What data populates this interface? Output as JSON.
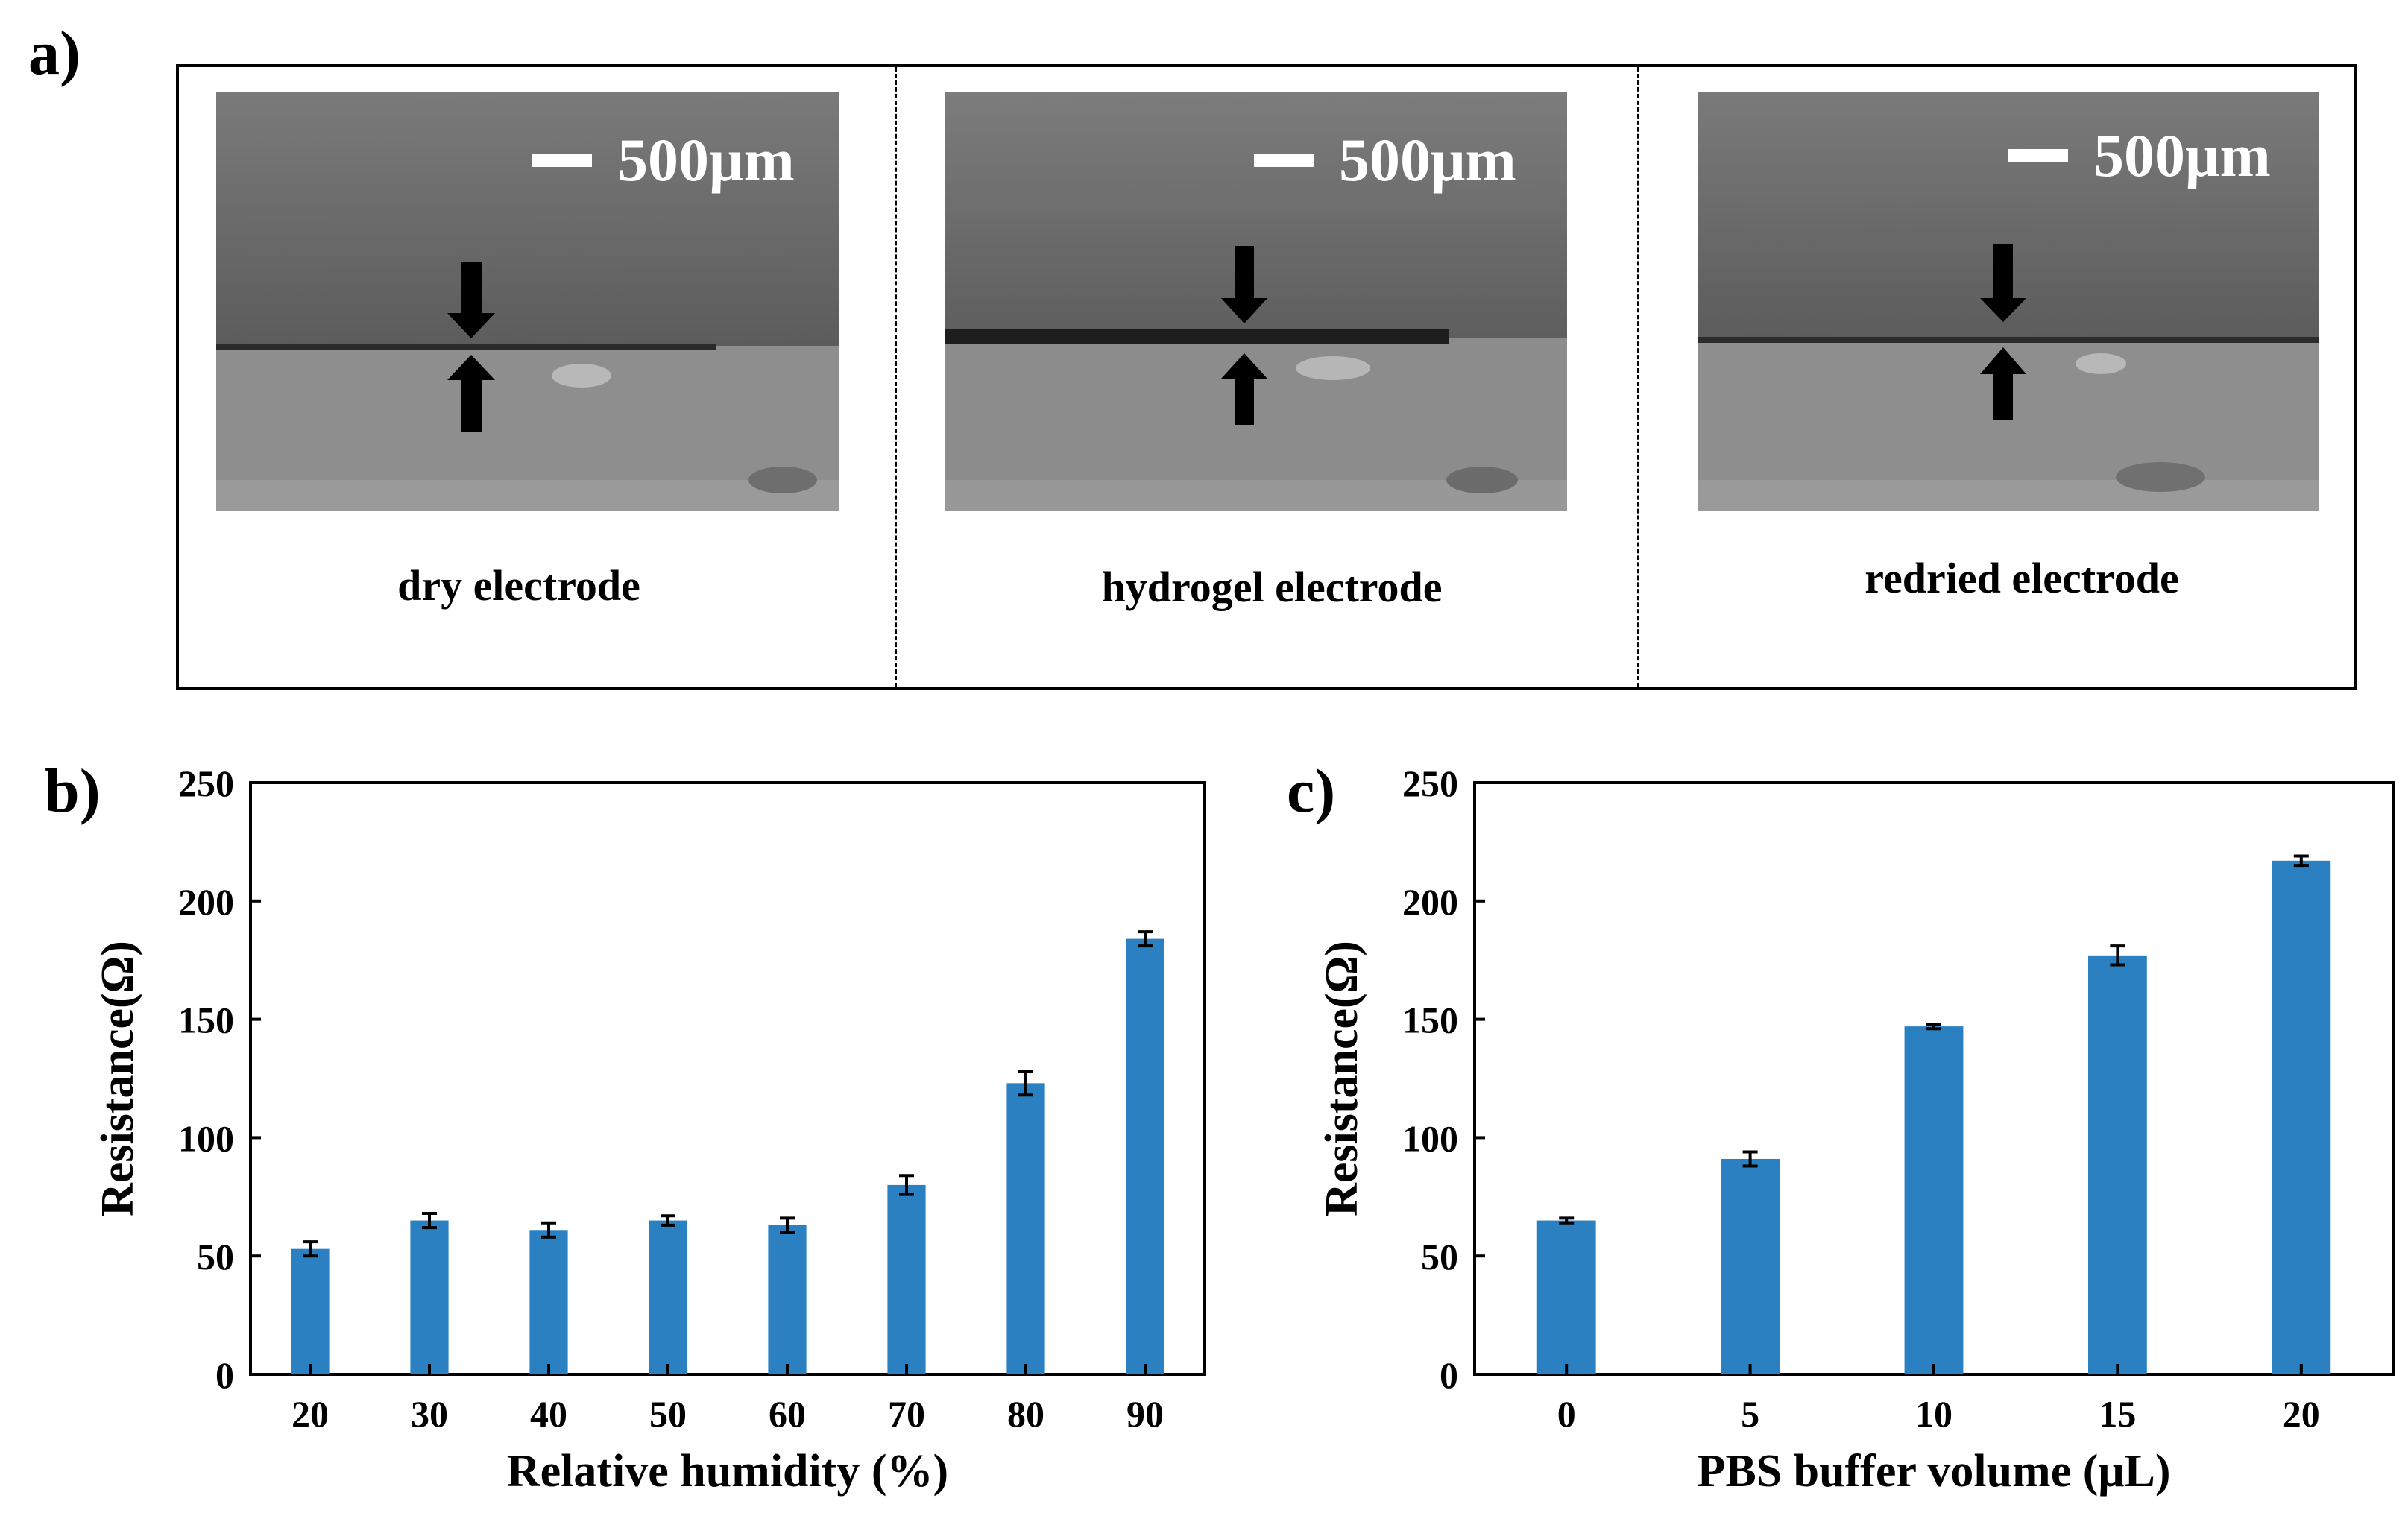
{
  "panel_a": {
    "label": "a)",
    "images": [
      {
        "caption": "dry electrode",
        "scale_label": "500μm"
      },
      {
        "caption": "hydrogel electrode",
        "scale_label": "500μm"
      },
      {
        "caption": "redried electrode",
        "scale_label": "500μm"
      }
    ]
  },
  "colors": {
    "bar": "#2a80c0",
    "text": "#000000"
  },
  "chart_data": [
    {
      "label": "b)",
      "type": "bar",
      "categories": [
        "20",
        "30",
        "40",
        "50",
        "60",
        "70",
        "80",
        "90"
      ],
      "values": [
        53,
        65,
        61,
        65,
        63,
        80,
        123,
        184
      ],
      "errors": [
        3,
        3,
        3,
        2,
        3,
        4,
        5,
        3
      ],
      "xlabel": "Relative humidity (%)",
      "ylabel": "Resistance(Ω)",
      "ylim": [
        0,
        250
      ],
      "yticks": [
        "0",
        "50",
        "100",
        "150",
        "200",
        "250"
      ]
    },
    {
      "label": "c)",
      "type": "bar",
      "categories": [
        "0",
        "5",
        "10",
        "15",
        "20"
      ],
      "values": [
        65,
        91,
        147,
        177,
        217
      ],
      "errors": [
        1,
        3,
        1,
        4,
        2
      ],
      "xlabel": "PBS buffer volume (μL)",
      "ylabel": "Resistance(Ω)",
      "ylim": [
        0,
        250
      ],
      "yticks": [
        "0",
        "50",
        "100",
        "150",
        "200",
        "250"
      ]
    }
  ]
}
